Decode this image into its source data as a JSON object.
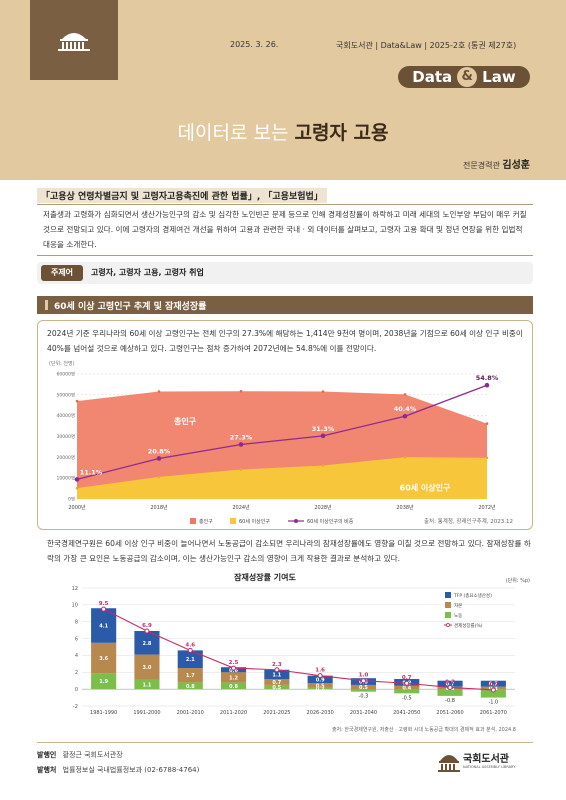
{
  "header": {
    "date": "2025. 3. 26.",
    "publisher_line": "국회도서관 | Data&Law | 2025-2호 (통권 제27호)",
    "badge_left": "Data",
    "badge_amp": "&",
    "badge_right": "Law",
    "title_light": "데이터로 보는",
    "title_bold": "고령자 고용",
    "author_role": "전문경력관",
    "author_name": "김성훈"
  },
  "law_title": "「고용상 연령차별금지 및 고령자고용촉진에 관한 법률」, 「고용보험법」",
  "intro": "저출생과 고령화가 심화되면서 생산가능인구의 감소 및 심각한 노인빈곤 문제 등으로 인해 경제성장률이 하락하고 미래 세대의 노인부양 부담이 매우 커질 것으로 전망되고 있다. 이에 고령자의 경제여건 개선을 위하여 고용과 관련한 국내 · 외 데이터를 살펴보고, 고령자 고용 확대 및 정년 연장을 위한 입법적 대응을 소개한다.",
  "theme": {
    "label": "주제어",
    "keywords": "고령자, 고령자 고용, 고령자 취업"
  },
  "section1": {
    "title": "60세 이상 고령인구 추계 및 잠재성장률",
    "para1": "2024년 기준 우리나라의 60세 이상 고령인구는 전체 인구의 27.3%에 해당하는 1,414만 9천여 명이며, 2038년을 기점으로 60세 이상 인구 비중이 40%를 넘어설 것으로 예상하고 있다. 고령인구는 점차 증가하여 2072년에는 54.8%에 이를 전망이다.",
    "para2": "한국경제연구원은 60세 이상 인구 비중이 늘어나면서 노동공급이 감소되면 우리나라의 잠재성장률에도 영향을 미칠 것으로 전망하고 있다. 잠재성장률 하락의 가장 큰 요인은 노동공급의 감소이며, 이는 생산가능인구 감소의 영향이 크게 작용한 결과로 분석하고 있다."
  },
  "chart_data": [
    {
      "type": "area",
      "unit": "(단위: 천명)",
      "x": [
        "2000년",
        "2018년",
        "2024년",
        "2028년",
        "2038년",
        "2072년"
      ],
      "yticks": [
        "0명",
        "10000명",
        "20000명",
        "30000명",
        "40000명",
        "50000명",
        "60000명"
      ],
      "ylim": [
        0,
        60000
      ],
      "series": [
        {
          "name": "총인구",
          "values": [
            47000,
            51600,
            51750,
            51600,
            50200,
            36200
          ],
          "color": "#ef7a62"
        },
        {
          "name": "60세 이상인구",
          "values": [
            5200,
            10600,
            14149,
            16100,
            20100,
            19800
          ],
          "color": "#f8c63a"
        },
        {
          "name": "60세 이상인구의 비중",
          "values": [
            11.1,
            20.8,
            27.3,
            31.3,
            40.4,
            54.8
          ],
          "color": "#8e2a8e"
        }
      ],
      "ratio_labels": [
        "11.1%",
        "20.8%",
        "27.3%",
        "31.3%",
        "40.4%",
        "54.8%"
      ],
      "area_labels": {
        "total": "총인구",
        "elderly": "60세 이상인구"
      },
      "source": "출처: 통계청, 장래인구추계, 2023.12"
    },
    {
      "type": "bar",
      "title": "잠재성장률 기여도",
      "unit": "(단위: %p)",
      "categories": [
        "1981-1990",
        "1991-2000",
        "2001-2010",
        "2011-2020",
        "2021-2025",
        "2026-2030",
        "2031-2040",
        "2041-2050",
        "2051-2060",
        "2061-2070"
      ],
      "ylim": [
        -2,
        12
      ],
      "yticks": [
        "-2",
        "0",
        "2",
        "4",
        "6",
        "8",
        "10",
        "12"
      ],
      "series": [
        {
          "name": "TFP (총요소생산성)",
          "values": [
            4.1,
            2.8,
            2.1,
            0.6,
            1.1,
            0.9,
            0.8,
            0.8,
            0.7,
            0.7
          ],
          "labels": [
            "4.1",
            "2.8",
            "2.1",
            "0.6",
            "1.1",
            "0.9",
            "0.8",
            "0.8",
            "0.7",
            "0.7"
          ],
          "color": "#2b5aa8"
        },
        {
          "name": "자본",
          "values": [
            3.6,
            3.0,
            1.7,
            1.2,
            0.7,
            0.5,
            0.5,
            0.4,
            0.3,
            0.3
          ],
          "labels": [
            "3.6",
            "3.0",
            "1.7",
            "1.2",
            "0.7",
            "0.5",
            "0.5",
            "0.4",
            "0.3",
            "0.3"
          ],
          "color": "#b8894f"
        },
        {
          "name": "노동",
          "values": [
            1.9,
            1.1,
            0.8,
            0.8,
            0.5,
            0.2,
            -0.3,
            -0.5,
            -0.8,
            -1.0
          ],
          "labels": [
            "1.9",
            "1.1",
            "0.8",
            "0.8",
            "0.5",
            "0.2",
            "-0.3",
            "-0.5",
            "-0.8",
            "-1.0"
          ],
          "color": "#7bbf4a"
        },
        {
          "name": "경제성장률(%)",
          "values": [
            9.5,
            6.9,
            4.6,
            2.5,
            2.3,
            1.6,
            1.0,
            0.7,
            0.2,
            -0.1
          ],
          "labels": [
            "9.5",
            "6.9",
            "4.6",
            "2.5",
            "2.3",
            "1.6",
            "1.0",
            "0.7",
            "0.2",
            "-0.1"
          ],
          "color": "#c72c6a"
        }
      ],
      "source": "출처: 한국경제연구원, 저출산 · 고령화 시대 노동공급 확대의 경제적 효과 분석, 2024.8"
    }
  ],
  "footer": {
    "publisher_label": "발행인",
    "publisher": "황정근 국회도서관장",
    "office_label": "발행처",
    "office": "법률정보실 국내법률정보과 (02-6788-4764)",
    "logo_name": "국회도서관",
    "logo_en": "NATIONAL ASSEMBLY LIBRARY"
  }
}
